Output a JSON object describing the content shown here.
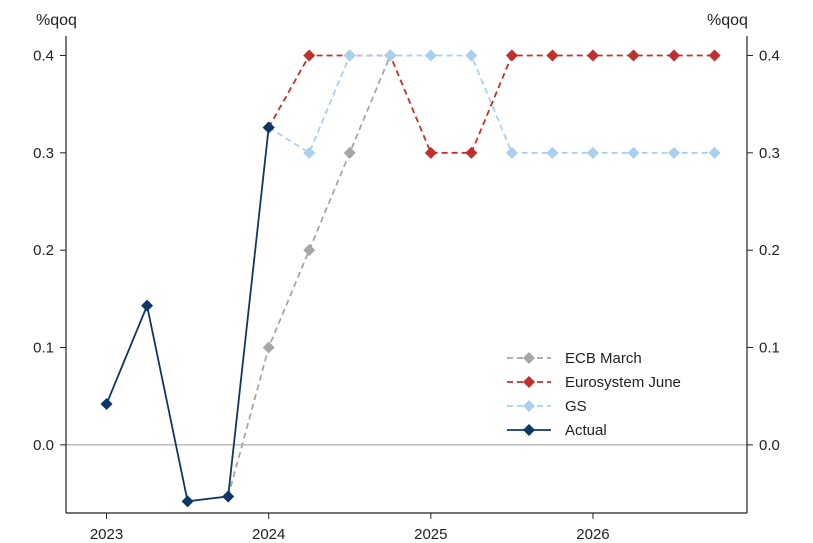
{
  "chart_data": {
    "type": "line",
    "y_unit_left": "%qoq",
    "y_unit_right": "%qoq",
    "x_ticks": [
      "2023",
      "2024",
      "2025",
      "2026"
    ],
    "y_ticks": [
      "0.0",
      "0.1",
      "0.2",
      "0.3",
      "0.4"
    ],
    "xlim": [
      2022.75,
      2026.95
    ],
    "ylim": [
      -0.07,
      0.42
    ],
    "grid": false,
    "zero_line": true,
    "legend_position": "lower-right",
    "series": [
      {
        "name": "ECB March",
        "color": "#a6a6a6",
        "dash": "dashed",
        "x": [
          2023.75,
          2024.0,
          2024.25,
          2024.5,
          2024.75
        ],
        "values": [
          -0.053,
          0.1,
          0.2,
          0.3,
          0.4
        ]
      },
      {
        "name": "Eurosystem June",
        "color": "#c0302c",
        "dash": "dashed",
        "x": [
          2024.0,
          2024.25,
          2024.5,
          2024.75,
          2025.0,
          2025.25,
          2025.5,
          2025.75,
          2026.0,
          2026.25,
          2026.5,
          2026.75
        ],
        "values": [
          0.326,
          0.4,
          0.4,
          0.4,
          0.3,
          0.3,
          0.4,
          0.4,
          0.4,
          0.4,
          0.4,
          0.4
        ]
      },
      {
        "name": "GS",
        "color": "#a9d0ee",
        "dash": "dashed",
        "x": [
          2024.0,
          2024.25,
          2024.5,
          2024.75,
          2025.0,
          2025.25,
          2025.5,
          2025.75,
          2026.0,
          2026.25,
          2026.5,
          2026.75
        ],
        "values": [
          0.326,
          0.3,
          0.4,
          0.4,
          0.4,
          0.4,
          0.3,
          0.3,
          0.3,
          0.3,
          0.3,
          0.3
        ]
      },
      {
        "name": "Actual",
        "color": "#0d3866",
        "dash": "solid",
        "x": [
          2023.0,
          2023.25,
          2023.5,
          2023.75,
          2024.0
        ],
        "values": [
          0.042,
          0.143,
          -0.058,
          -0.053,
          0.326
        ]
      }
    ]
  }
}
